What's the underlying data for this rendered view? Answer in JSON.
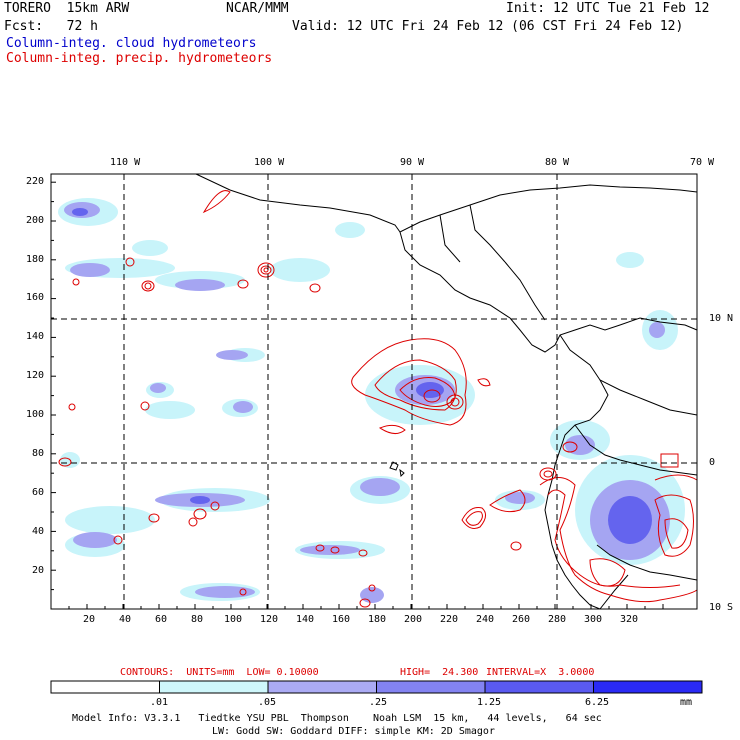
{
  "header": {
    "model": "TORERO  15km ARW",
    "center": "NCAR/MMM",
    "init": "Init: 12 UTC Tue 21 Feb 12",
    "fcst": "Fcst:   72 h",
    "valid": "Valid: 12 UTC Fri 24 Feb 12 (06 CST Fri 24 Feb 12)",
    "field1": "Column-integ. cloud hydrometeors",
    "field2": "Column-integ. precip. hydrometeors"
  },
  "map": {
    "lon_labels": [
      "110 W",
      "100 W",
      "90 W",
      "80 W",
      "70 W"
    ],
    "lat_labels": [
      "10 N",
      "0",
      "10 S"
    ],
    "x_ticks": [
      "20",
      "40",
      "60",
      "80",
      "100",
      "120",
      "140",
      "160",
      "180",
      "200",
      "220",
      "240",
      "260",
      "280",
      "300",
      "320"
    ],
    "y_ticks": [
      "220",
      "200",
      "180",
      "160",
      "140",
      "120",
      "100",
      "80",
      "60",
      "40",
      "20"
    ],
    "colors": {
      "cloud_light": "#c8f4fa",
      "cloud_mid": "#8f8ff0",
      "cloud_dark": "#5c5cf0",
      "contour": "#dd0000",
      "coast": "#000000"
    }
  },
  "contour_info": {
    "units": "CONTOURS:  UNITS=mm  LOW= 0.10000",
    "high": "HIGH=  24.300",
    "interval": "INTERVAL=X  3.0000"
  },
  "colorbar": {
    "labels": [
      ".01",
      ".05",
      ".25",
      "1.25",
      "6.25",
      "mm"
    ],
    "colors": [
      "#ffffff",
      "#cff7fb",
      "#ababf4",
      "#8383f1",
      "#5a5af0",
      "#2a2af5"
    ]
  },
  "footer": {
    "line1": "Model Info: V3.3.1   Tiedtke YSU PBL  Thompson    Noah LSM  15 km,   44 levels,   64 sec",
    "line2": "LW: Godd SW: Goddard DIFF: simple KM: 2D Smagor"
  }
}
